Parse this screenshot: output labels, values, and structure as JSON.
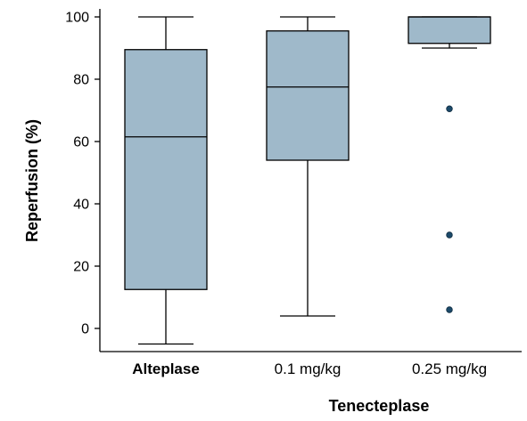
{
  "chart_data": {
    "type": "boxplot",
    "title": "",
    "ylabel": "Reperfusion (%)",
    "xlabel": "Tenecteplase",
    "ylim": [
      0,
      100
    ],
    "y_ticks": [
      "0",
      "20",
      "40",
      "60",
      "80",
      "100"
    ],
    "grid": false,
    "legend": "none",
    "box_color": "#9fb9ca",
    "outlier_color": "#1c4a6a",
    "categories": [
      "Alteplase",
      "0.1 mg/kg",
      "0.25 mg/kg"
    ],
    "boxes": [
      {
        "category": "Alteplase",
        "label_bold": true,
        "whisker_low": -5,
        "q1": 12.5,
        "median": 61.5,
        "q3": 89.5,
        "whisker_high": 100,
        "outliers": []
      },
      {
        "category": "0.1 mg/kg",
        "label_bold": false,
        "whisker_low": 4,
        "q1": 54,
        "median": 77.5,
        "q3": 95.5,
        "whisker_high": 100,
        "outliers": []
      },
      {
        "category": "0.25 mg/kg",
        "label_bold": false,
        "whisker_low": 90,
        "q1": 91.5,
        "median": 100,
        "q3": 100,
        "whisker_high": 100,
        "outliers": [
          70.5,
          30,
          6
        ]
      }
    ]
  }
}
